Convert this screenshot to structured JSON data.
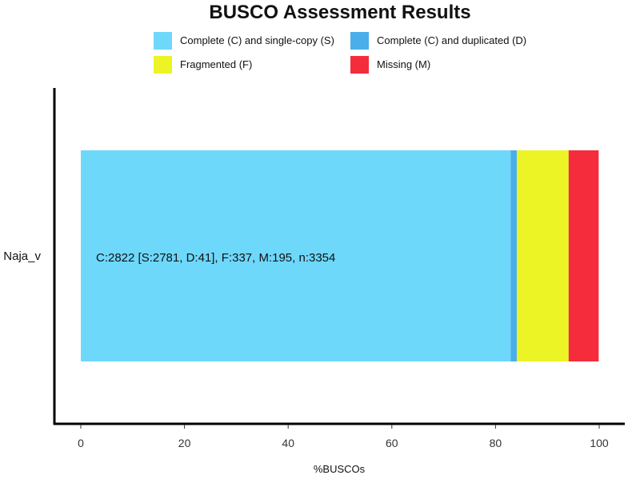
{
  "chart_data": {
    "type": "bar",
    "orientation": "horizontal",
    "stacked": true,
    "title": "BUSCO Assessment Results",
    "xlabel": "%BUSCOs",
    "ylabel": "",
    "xlim": [
      -5,
      105
    ],
    "xticks": [
      0,
      20,
      40,
      60,
      80,
      100
    ],
    "grid": false,
    "legend_position": "top",
    "categories": [
      "Naja_v"
    ],
    "series": [
      {
        "name": "Complete (C) and single-copy (S)",
        "color": "#6ED8FB",
        "values": [
          82.9
        ]
      },
      {
        "name": "Complete (C) and duplicated (D)",
        "color": "#4AAEEB",
        "values": [
          1.2
        ]
      },
      {
        "name": "Fragmented (F)",
        "color": "#ECF425",
        "values": [
          10.0
        ]
      },
      {
        "name": "Missing (M)",
        "color": "#F52C3B",
        "values": [
          5.8
        ]
      }
    ],
    "annotation": "C:2822 [S:2781, D:41], F:337, M:195, n:3354"
  }
}
